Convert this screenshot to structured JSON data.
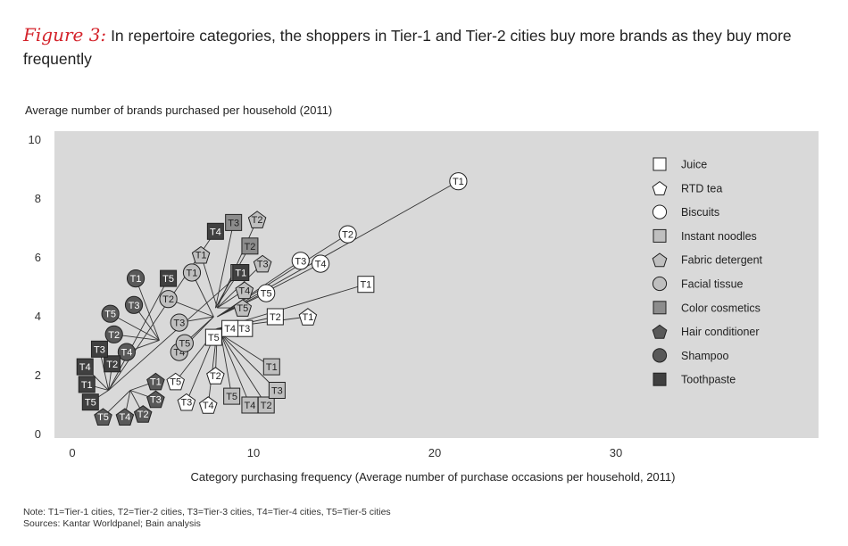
{
  "figure": {
    "label": "Figure 3:",
    "caption": "In repertoire categories, the shoppers in Tier-1 and Tier-2 cities buy more brands as they buy more frequently"
  },
  "footer": {
    "note": "Note: T1=Tier-1 cities, T2=Tier-2 cities, T3=Tier-3 cities, T4=Tier-4 cities, T5=Tier-5 cities",
    "sources": "Sources: Kantar Worldpanel; Bain analysis"
  },
  "colors": {
    "panel": "#d9d9d9",
    "line": "#333333",
    "white": "#ffffff",
    "light": "#bfbfbf",
    "mid": "#8c8c8c",
    "dark": "#595959",
    "darker": "#404040"
  },
  "chart_data": {
    "type": "scatter",
    "xlabel": "Category purchasing frequency (Average number of purchase occasions per household, 2011)",
    "ylabel": "Average number of brands purchased per household (2011)",
    "xlim": [
      0,
      41
    ],
    "ylim": [
      0,
      10
    ],
    "xticks": [
      0,
      10,
      20,
      30
    ],
    "yticks": [
      0,
      2,
      4,
      6,
      8,
      10
    ],
    "grid": false,
    "legend_position": "right",
    "note": "Each category's tier points are connected by lines to a common hub",
    "series": [
      {
        "name": "Juice",
        "shape": "square",
        "fill": "white",
        "hub": [
          7.5,
          3.5
        ],
        "points": [
          {
            "label": "T1",
            "x": 16.2,
            "y": 5.1
          },
          {
            "label": "T2",
            "x": 11.2,
            "y": 4.0
          },
          {
            "label": "T3",
            "x": 9.5,
            "y": 3.6
          },
          {
            "label": "T4",
            "x": 8.7,
            "y": 3.6
          },
          {
            "label": "T5",
            "x": 7.8,
            "y": 3.3
          }
        ]
      },
      {
        "name": "RTD tea",
        "shape": "pentagon",
        "fill": "white",
        "hub": [
          8.0,
          3.6
        ],
        "points": [
          {
            "label": "T1",
            "x": 13.0,
            "y": 4.0
          },
          {
            "label": "T2",
            "x": 7.9,
            "y": 2.0
          },
          {
            "label": "T3",
            "x": 6.3,
            "y": 1.1
          },
          {
            "label": "T4",
            "x": 7.5,
            "y": 1.0
          },
          {
            "label": "T5",
            "x": 5.7,
            "y": 1.8
          }
        ]
      },
      {
        "name": "Biscuits",
        "shape": "circle",
        "fill": "white",
        "hub": [
          8.0,
          4.0
        ],
        "points": [
          {
            "label": "T1",
            "x": 21.3,
            "y": 8.6
          },
          {
            "label": "T2",
            "x": 15.2,
            "y": 6.8
          },
          {
            "label": "T3",
            "x": 12.6,
            "y": 5.9
          },
          {
            "label": "T4",
            "x": 13.7,
            "y": 5.8
          },
          {
            "label": "T5",
            "x": 10.7,
            "y": 4.8
          }
        ]
      },
      {
        "name": "Instant noodles",
        "shape": "square",
        "fill": "light",
        "hub": [
          8.2,
          3.4
        ],
        "points": [
          {
            "label": "T1",
            "x": 11.0,
            "y": 2.3
          },
          {
            "label": "T2",
            "x": 10.7,
            "y": 1.0
          },
          {
            "label": "T3",
            "x": 11.3,
            "y": 1.5
          },
          {
            "label": "T4",
            "x": 9.8,
            "y": 1.0
          },
          {
            "label": "T5",
            "x": 8.8,
            "y": 1.3
          }
        ]
      },
      {
        "name": "Fabric detergent",
        "shape": "pentagon",
        "fill": "light",
        "hub": [
          8.0,
          4.3
        ],
        "points": [
          {
            "label": "T1",
            "x": 7.1,
            "y": 6.1
          },
          {
            "label": "T2",
            "x": 10.2,
            "y": 7.3
          },
          {
            "label": "T3",
            "x": 10.5,
            "y": 5.8
          },
          {
            "label": "T4",
            "x": 9.5,
            "y": 4.9
          },
          {
            "label": "T5",
            "x": 9.4,
            "y": 4.3
          }
        ]
      },
      {
        "name": "Facial tissue",
        "shape": "circle",
        "fill": "light",
        "hub": [
          7.8,
          4.0
        ],
        "points": [
          {
            "label": "T1",
            "x": 6.6,
            "y": 5.5
          },
          {
            "label": "T2",
            "x": 5.3,
            "y": 4.6
          },
          {
            "label": "T3",
            "x": 5.9,
            "y": 3.8
          },
          {
            "label": "T4",
            "x": 5.9,
            "y": 2.8
          },
          {
            "label": "T5",
            "x": 6.2,
            "y": 3.1
          }
        ]
      },
      {
        "name": "Color cosmetics",
        "shape": "square",
        "fill": "mid",
        "hub": [
          7.9,
          4.3
        ],
        "points": [
          {
            "label": "T1",
            "x": 9.2,
            "y": 5.5
          },
          {
            "label": "T2",
            "x": 9.8,
            "y": 6.4
          },
          {
            "label": "T3",
            "x": 8.9,
            "y": 7.2
          }
        ]
      },
      {
        "name": "Hair conditioner",
        "shape": "pentagon",
        "fill": "dark",
        "hub": [
          3.2,
          1.5
        ],
        "points": [
          {
            "label": "T1",
            "x": 4.6,
            "y": 1.8
          },
          {
            "label": "T2",
            "x": 3.9,
            "y": 0.7
          },
          {
            "label": "T3",
            "x": 4.6,
            "y": 1.2
          },
          {
            "label": "T4",
            "x": 2.9,
            "y": 0.6
          },
          {
            "label": "T5",
            "x": 1.7,
            "y": 0.6
          }
        ]
      },
      {
        "name": "Shampoo",
        "shape": "circle",
        "fill": "dark",
        "hub": [
          4.8,
          3.2
        ],
        "points": [
          {
            "label": "T1",
            "x": 3.5,
            "y": 5.3
          },
          {
            "label": "T2",
            "x": 2.3,
            "y": 3.4
          },
          {
            "label": "T3",
            "x": 3.4,
            "y": 4.4
          },
          {
            "label": "T4",
            "x": 3.0,
            "y": 2.8
          },
          {
            "label": "T5",
            "x": 2.1,
            "y": 4.1
          }
        ]
      },
      {
        "name": "Toothpaste",
        "shape": "square",
        "fill": "darker",
        "hub": [
          2.0,
          1.5
        ],
        "points": [
          {
            "label": "T1",
            "x": 0.8,
            "y": 1.7
          },
          {
            "label": "T2",
            "x": 2.2,
            "y": 2.4
          },
          {
            "label": "T3",
            "x": 1.5,
            "y": 2.9
          },
          {
            "label": "T4",
            "x": 0.7,
            "y": 2.3
          },
          {
            "label": "T5",
            "x": 1.0,
            "y": 1.1
          },
          {
            "label": "T1",
            "x": 9.3,
            "y": 5.5
          },
          {
            "label": "T4",
            "x": 7.9,
            "y": 6.9
          },
          {
            "label": "T5",
            "x": 5.3,
            "y": 5.3
          }
        ]
      }
    ]
  }
}
